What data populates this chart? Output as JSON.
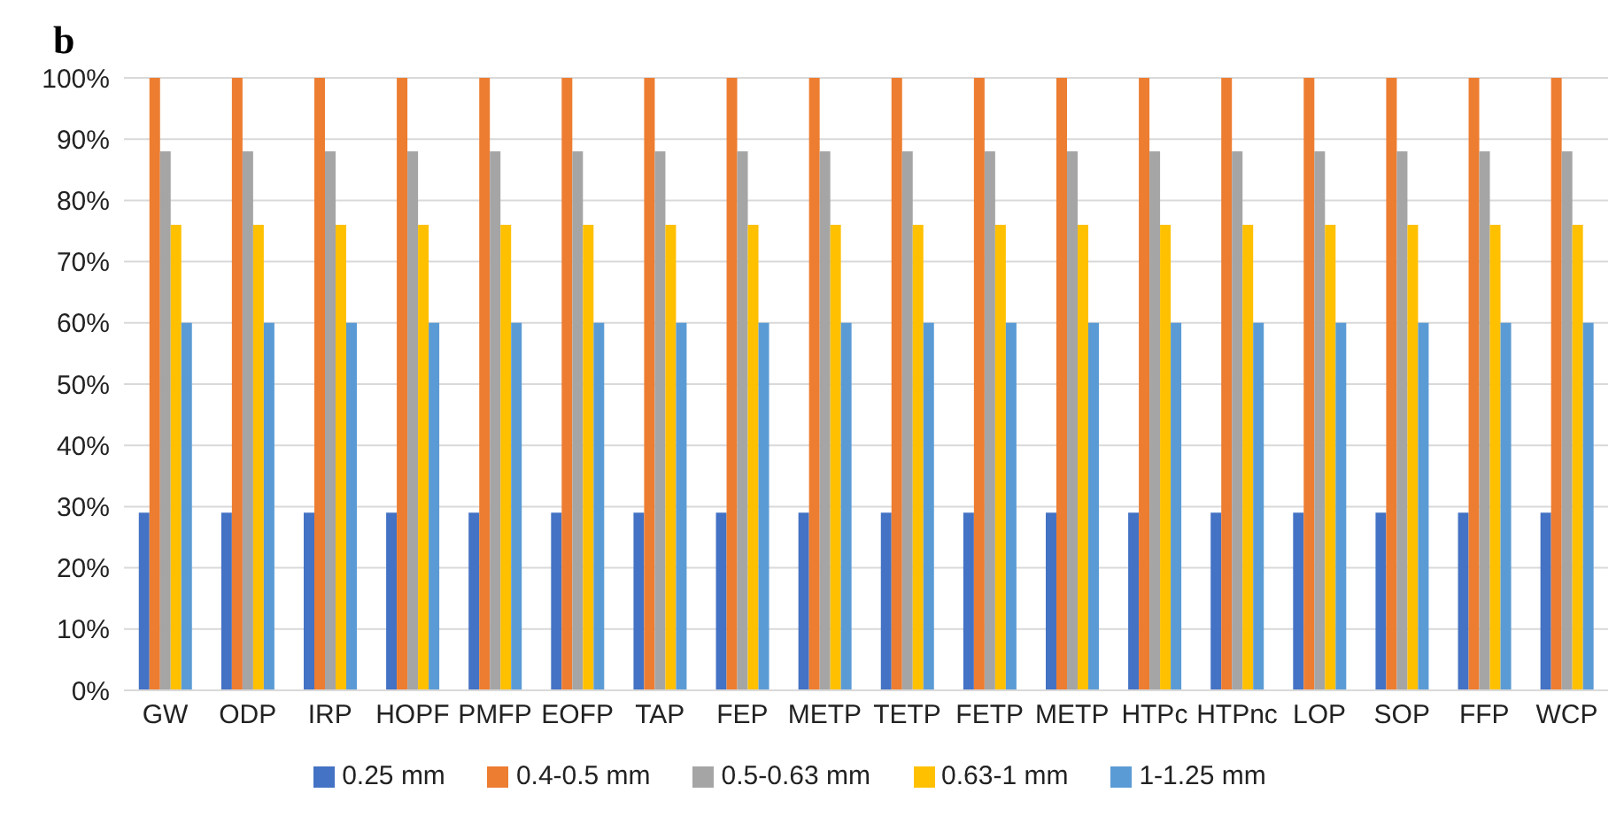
{
  "chart_data": {
    "type": "bar",
    "title": "b",
    "categories": [
      "GW",
      "ODP",
      "IRP",
      "HOPF",
      "PMFP",
      "EOFP",
      "TAP",
      "FEP",
      "METP",
      "TETP",
      "FETP",
      "METP",
      "HTPc",
      "HTPnc",
      "LOP",
      "SOP",
      "FFP",
      "WCP"
    ],
    "series": [
      {
        "name": "0.25 mm",
        "color": "#4472c4",
        "values": [
          29,
          29,
          29,
          29,
          29,
          29,
          29,
          29,
          29,
          29,
          29,
          29,
          29,
          29,
          29,
          29,
          29,
          29
        ]
      },
      {
        "name": "0.4-0.5 mm",
        "color": "#ed7d31",
        "values": [
          100,
          100,
          100,
          100,
          100,
          100,
          100,
          100,
          100,
          100,
          100,
          100,
          100,
          100,
          100,
          100,
          100,
          100
        ]
      },
      {
        "name": "0.5-0.63 mm",
        "color": "#a5a5a5",
        "values": [
          88,
          88,
          88,
          88,
          88,
          88,
          88,
          88,
          88,
          88,
          88,
          88,
          88,
          88,
          88,
          88,
          88,
          88
        ]
      },
      {
        "name": "0.63-1 mm",
        "color": "#ffc000",
        "values": [
          76,
          76,
          76,
          76,
          76,
          76,
          76,
          76,
          76,
          76,
          76,
          76,
          76,
          76,
          76,
          76,
          76,
          76
        ]
      },
      {
        "name": "1-1.25 mm",
        "color": "#5b9bd5",
        "values": [
          60,
          60,
          60,
          60,
          60,
          60,
          60,
          60,
          60,
          60,
          60,
          60,
          60,
          60,
          60,
          60,
          60,
          60
        ]
      }
    ],
    "ylim": [
      0,
      100
    ],
    "yticks": [
      {
        "value": 0,
        "label": "0%"
      },
      {
        "value": 10,
        "label": "10%"
      },
      {
        "value": 20,
        "label": "20%"
      },
      {
        "value": 30,
        "label": "30%"
      },
      {
        "value": 40,
        "label": "40%"
      },
      {
        "value": 50,
        "label": "50%"
      },
      {
        "value": 60,
        "label": "60%"
      },
      {
        "value": 70,
        "label": "70%"
      },
      {
        "value": 80,
        "label": "80%"
      },
      {
        "value": 90,
        "label": "90%"
      },
      {
        "value": 100,
        "label": "100%"
      }
    ],
    "grid": "y",
    "legend": "bottom"
  }
}
